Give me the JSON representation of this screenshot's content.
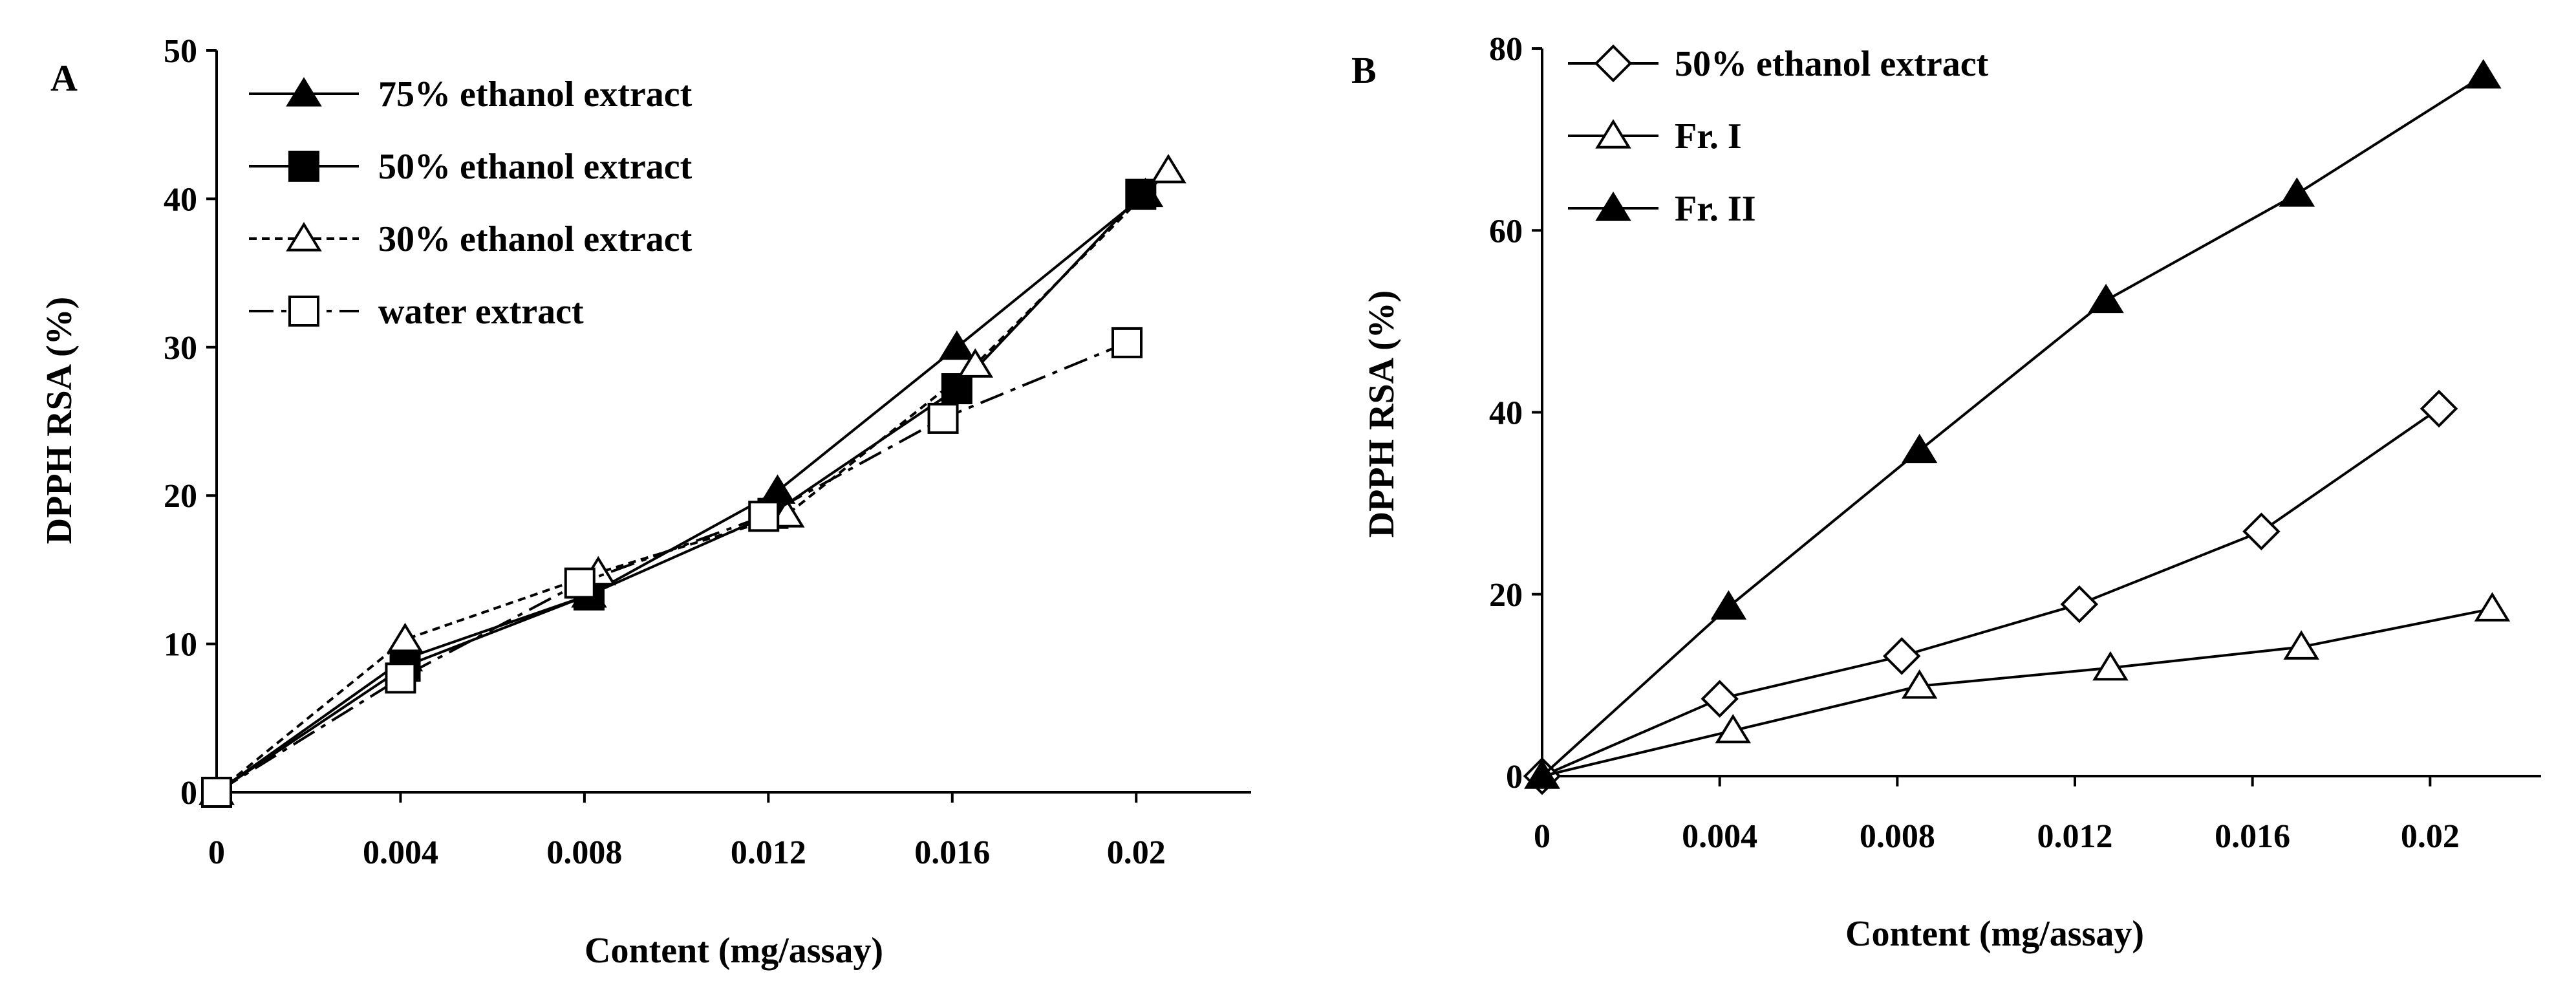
{
  "figure": {
    "panels": [
      "A",
      "B"
    ]
  },
  "chart_data": [
    {
      "panel": "A",
      "type": "line",
      "title": "",
      "xlabel": "Content  (mg/assay)",
      "ylabel": "DPPH RSA  (%)",
      "xlim": [
        0,
        0.0225
      ],
      "ylim": [
        0,
        50
      ],
      "xticks": [
        "0",
        "0.004",
        "0.008",
        "0.012",
        "0.016",
        "0.02"
      ],
      "xtick_values": [
        0,
        0.004,
        0.008,
        0.012,
        0.016,
        0.02
      ],
      "yticks": [
        "0",
        "10",
        "20",
        "30",
        "40",
        "50"
      ],
      "ytick_values": [
        0,
        10,
        20,
        30,
        40,
        50
      ],
      "grid": false,
      "legend_position": "top-left",
      "series": [
        {
          "name": "75% ethanol extract",
          "marker": "triangle-filled",
          "line": "solid",
          "x": [
            0,
            0.0041,
            0.0081,
            0.0122,
            0.0161,
            0.0202
          ],
          "y": [
            0,
            9.0,
            13.3,
            20.3,
            30.0,
            40.3
          ]
        },
        {
          "name": "50% ethanol extract",
          "marker": "square-filled",
          "line": "solid",
          "x": [
            0,
            0.0041,
            0.0081,
            0.0121,
            0.0161,
            0.0201
          ],
          "y": [
            0,
            8.5,
            13.3,
            18.8,
            27.2,
            40.3
          ]
        },
        {
          "name": "30% ethanol extract",
          "marker": "triangle-open",
          "line": "dotted",
          "x": [
            0,
            0.0041,
            0.0083,
            0.0124,
            0.0165,
            0.0207
          ],
          "y": [
            0,
            10.3,
            14.8,
            18.7,
            28.8,
            41.9
          ]
        },
        {
          "name": "water extract",
          "marker": "square-open",
          "line": "dashdot",
          "x": [
            0,
            0.004,
            0.0079,
            0.0119,
            0.0158,
            0.0198
          ],
          "y": [
            0,
            7.7,
            14.1,
            18.6,
            25.2,
            30.3
          ]
        }
      ]
    },
    {
      "panel": "B",
      "type": "line",
      "title": "",
      "xlabel": "Content (mg/assay)",
      "ylabel": "DPPH RSA  (%)",
      "xlim": [
        0,
        0.0225
      ],
      "ylim": [
        0,
        80
      ],
      "xticks": [
        "0",
        "0.004",
        "0.008",
        "0.012",
        "0.016",
        "0.02"
      ],
      "xtick_values": [
        0,
        0.004,
        0.008,
        0.012,
        0.016,
        0.02
      ],
      "yticks": [
        "0",
        "20",
        "40",
        "60",
        "80"
      ],
      "ytick_values": [
        0,
        20,
        40,
        60,
        80
      ],
      "grid": false,
      "legend_position": "top-left",
      "series": [
        {
          "name": "50% ethanol extract",
          "marker": "diamond-open",
          "line": "solid",
          "x": [
            0,
            0.004,
            0.0081,
            0.0121,
            0.0162,
            0.0202
          ],
          "y": [
            0,
            8.5,
            13.2,
            18.9,
            26.9,
            40.4
          ]
        },
        {
          "name": "Fr. I",
          "marker": "triangle-open",
          "line": "solid",
          "x": [
            0,
            0.0043,
            0.0085,
            0.0128,
            0.0171,
            0.0214
          ],
          "y": [
            0,
            5.0,
            9.9,
            11.9,
            14.2,
            18.4
          ]
        },
        {
          "name": "Fr. II",
          "marker": "triangle-filled",
          "line": "solid",
          "x": [
            0,
            0.0042,
            0.0085,
            0.0127,
            0.017,
            0.0212
          ],
          "y": [
            0,
            18.6,
            35.8,
            52.3,
            64.0,
            77.0
          ]
        }
      ]
    }
  ]
}
